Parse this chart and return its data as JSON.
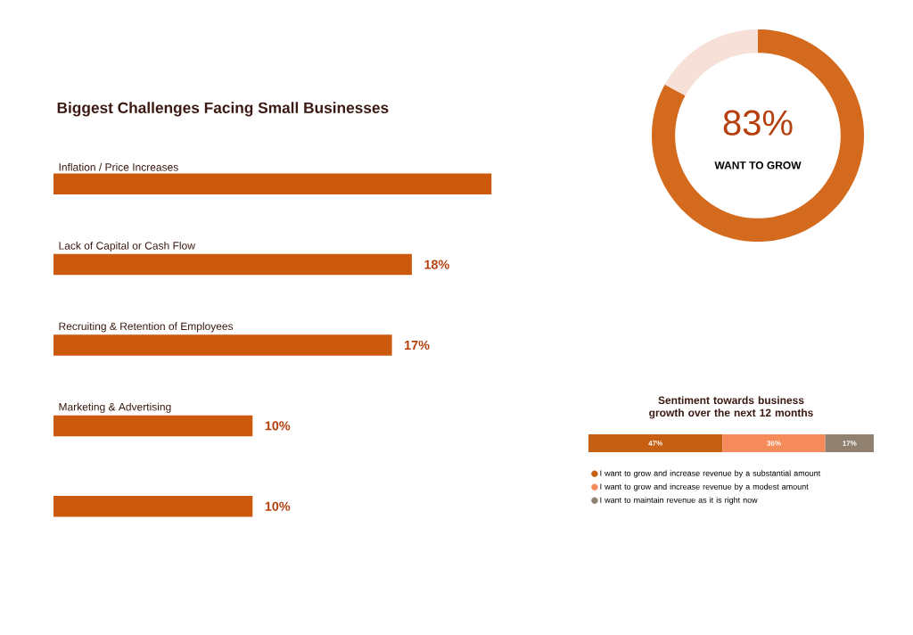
{
  "chart_data": [
    {
      "type": "bar",
      "orientation": "horizontal",
      "title": "Biggest Challenges Facing Small Businesses",
      "categories": [
        "Inflation / Price Increases",
        "Lack of Capital or Cash Flow",
        "Recruiting & Retention of Employees",
        "Marketing & Advertising",
        null
      ],
      "values": [
        22,
        18,
        17,
        10,
        10
      ],
      "value_labels": [
        null,
        "18%",
        "17%",
        "10%",
        "10%"
      ],
      "color": "#cc5a0e"
    },
    {
      "type": "donut",
      "categories": [
        null,
        null
      ],
      "values": [
        83,
        17
      ],
      "colors": [
        "#d46a1e",
        "#f6e0d8"
      ],
      "value_labels": [
        "83%",
        null
      ],
      "annotations": [
        "WANT TO GROW"
      ]
    },
    {
      "type": "bar",
      "orientation": "horizontal",
      "stacked": true,
      "title": "Sentiment towards business growth over the next 12 months",
      "categories": [
        null
      ],
      "legend": "bottom",
      "series": [
        {
          "name": "I want to grow and increase revenue by a substantial amount",
          "color": "#c65f12",
          "values": [
            47
          ],
          "value_labels": [
            "47%"
          ]
        },
        {
          "name": "I want to grow and increase revenue by a modest amount",
          "color": "#f58a5a",
          "values": [
            36
          ],
          "value_labels": [
            "36%"
          ]
        },
        {
          "name": "I want to maintain revenue as it is right now",
          "color": "#8f8070",
          "values": [
            17
          ],
          "value_labels": [
            "17%"
          ]
        }
      ]
    }
  ]
}
